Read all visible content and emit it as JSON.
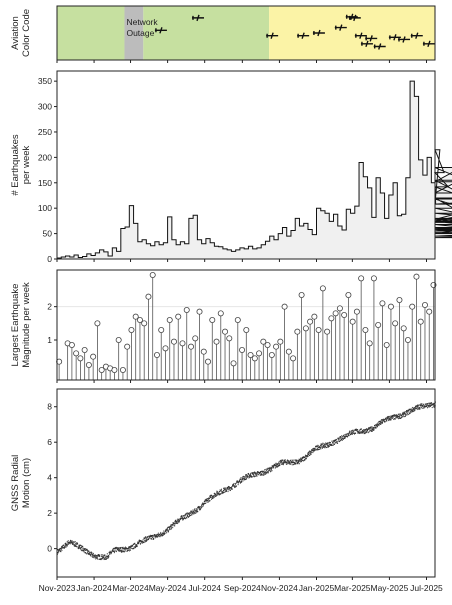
{
  "x_axis": {
    "start": "2023-11-01",
    "end": "2025-07-15",
    "ticks": [
      {
        "date": "2023-11-01",
        "label": "Nov-2023"
      },
      {
        "date": "2024-01-01",
        "label": "Jan-2024"
      },
      {
        "date": "2024-03-01",
        "label": "Mar-2024"
      },
      {
        "date": "2024-05-01",
        "label": "May-2024"
      },
      {
        "date": "2024-07-01",
        "label": "Jul-2024"
      },
      {
        "date": "2024-09-01",
        "label": "Sep-2024"
      },
      {
        "date": "2024-11-01",
        "label": "Nov-2024"
      },
      {
        "date": "2025-01-01",
        "label": "Jan-2025"
      },
      {
        "date": "2025-03-01",
        "label": "Mar-2025"
      },
      {
        "date": "2025-05-01",
        "label": "May-2025"
      },
      {
        "date": "2025-07-01",
        "label": "Jul-2025"
      }
    ]
  },
  "panel_aviation": {
    "ylabel_line1": "Aviation",
    "ylabel_line2": "Color Code",
    "segments": [
      {
        "start": "2023-11-01",
        "end": "2024-02-20",
        "color": "#c6e0a0",
        "label": ""
      },
      {
        "start": "2024-02-20",
        "end": "2024-03-22",
        "color": "#bcbcbc",
        "label": "Network Outage"
      },
      {
        "start": "2024-03-22",
        "end": "2024-10-15",
        "color": "#c6e0a0",
        "label": ""
      },
      {
        "start": "2024-10-15",
        "end": "2025-07-15",
        "color": "#fbf3a6",
        "label": ""
      }
    ],
    "outage_line1": "Network",
    "outage_line2": "Outage",
    "aircraft": [
      {
        "date": "2024-04-20",
        "level": 0.55
      },
      {
        "date": "2024-06-20",
        "level": 0.78
      },
      {
        "date": "2024-10-20",
        "level": 0.45
      },
      {
        "date": "2024-12-10",
        "level": 0.45
      },
      {
        "date": "2025-01-05",
        "level": 0.5
      },
      {
        "date": "2025-02-10",
        "level": 0.6
      },
      {
        "date": "2025-02-28",
        "level": 0.8
      },
      {
        "date": "2025-03-05",
        "level": 0.78
      },
      {
        "date": "2025-03-15",
        "level": 0.45
      },
      {
        "date": "2025-03-25",
        "level": 0.3
      },
      {
        "date": "2025-04-01",
        "level": 0.4
      },
      {
        "date": "2025-04-15",
        "level": 0.25
      },
      {
        "date": "2025-05-10",
        "level": 0.42
      },
      {
        "date": "2025-05-25",
        "level": 0.38
      },
      {
        "date": "2025-06-15",
        "level": 0.45
      },
      {
        "date": "2025-07-05",
        "level": 0.3
      }
    ]
  },
  "chart_data": [
    {
      "type": "bar",
      "style": "step",
      "ylabel_line1": "# Earthquakes",
      "ylabel_line2": "per week",
      "ylim": [
        0,
        370
      ],
      "yticks": [
        0,
        50,
        100,
        150,
        200,
        250,
        300,
        350
      ],
      "fill_color": "#f0f0f0",
      "week_start": "2023-11-01",
      "values": [
        2,
        4,
        6,
        4,
        8,
        3,
        5,
        10,
        7,
        12,
        18,
        14,
        6,
        22,
        15,
        60,
        63,
        105,
        70,
        34,
        38,
        30,
        26,
        34,
        28,
        32,
        83,
        38,
        28,
        34,
        30,
        80,
        86,
        38,
        30,
        40,
        32,
        25,
        24,
        20,
        18,
        15,
        18,
        22,
        20,
        25,
        20,
        22,
        28,
        35,
        45,
        38,
        50,
        62,
        45,
        56,
        80,
        65,
        70,
        58,
        48,
        100,
        95,
        90,
        74,
        88,
        65,
        57,
        98,
        90,
        104,
        190,
        162,
        140,
        82,
        160,
        130,
        80,
        126,
        150,
        85,
        88,
        160,
        350,
        320,
        195,
        165,
        200,
        150,
        110,
        215,
        170,
        142,
        130,
        152,
        180,
        155,
        120,
        78,
        100,
        80,
        62,
        58,
        50,
        68,
        55,
        72,
        90,
        75,
        108,
        118,
        60,
        52,
        45,
        42,
        45,
        55,
        74,
        50
      ]
    },
    {
      "type": "scatter",
      "style": "stem",
      "ylabel_line1": "Largest Earthquake",
      "ylabel_line2": "Magnitude per week",
      "ylim": [
        -0.2,
        3.1
      ],
      "yticks": [
        1,
        2
      ],
      "gridline": 2,
      "week_start": "2023-11-01",
      "values": [
        0.35,
        null,
        0.9,
        0.85,
        0.6,
        0.45,
        0.7,
        0.25,
        0.5,
        1.5,
        0.1,
        0.2,
        0.15,
        0.1,
        1.0,
        0.1,
        0.8,
        1.3,
        1.7,
        1.6,
        1.5,
        2.3,
        2.95,
        0.55,
        1.3,
        0.75,
        1.6,
        0.95,
        1.7,
        0.9,
        1.9,
        0.8,
        1.05,
        1.85,
        0.65,
        0.35,
        1.6,
        0.95,
        1.8,
        1.25,
        1.05,
        0.3,
        1.6,
        0.7,
        1.3,
        0.55,
        0.45,
        0.6,
        0.95,
        0.85,
        0.55,
        0.8,
        0.95,
        2.0,
        0.65,
        0.45,
        1.25,
        2.35,
        1.35,
        1.55,
        1.7,
        1.3,
        2.55,
        1.25,
        1.65,
        1.8,
        1.95,
        1.75,
        2.35,
        1.55,
        1.85,
        2.85,
        1.3,
        0.9,
        2.85,
        1.45,
        2.1,
        0.85,
        2.0,
        1.5,
        2.2,
        1.35,
        1.0,
        2.0,
        2.9,
        1.55,
        2.05,
        1.85,
        2.65,
        2.1,
        0.75,
        1.9,
        2.25,
        1.85,
        2.65,
        2.3,
        0.85,
        0.85,
        0.75,
        2.25,
        0.4,
        0.95,
        2.0,
        0.75,
        0.5,
        1.85,
        2.65,
        0.35,
        0.85,
        0.85,
        0.75,
        1.25,
        1.9,
        1.95,
        2.0
      ]
    },
    {
      "type": "line",
      "style": "dotted",
      "ylabel_line1": "GNSS Radial",
      "ylabel_line2": "Motion (cm)",
      "ylim": [
        -1.6,
        9.0
      ],
      "yticks": [
        0,
        2,
        4,
        6,
        8
      ],
      "anchors": [
        {
          "date": "2023-11-01",
          "value": -0.1
        },
        {
          "date": "2023-11-20",
          "value": 0.35
        },
        {
          "date": "2023-12-10",
          "value": 0.0
        },
        {
          "date": "2024-01-01",
          "value": -0.35
        },
        {
          "date": "2024-01-20",
          "value": -0.55
        },
        {
          "date": "2024-02-05",
          "value": -0.1
        },
        {
          "date": "2024-03-01",
          "value": 0.1
        },
        {
          "date": "2024-04-01",
          "value": 0.55
        },
        {
          "date": "2024-05-01",
          "value": 1.1
        },
        {
          "date": "2024-06-01",
          "value": 1.85
        },
        {
          "date": "2024-07-01",
          "value": 2.6
        },
        {
          "date": "2024-08-01",
          "value": 3.3
        },
        {
          "date": "2024-09-01",
          "value": 3.9
        },
        {
          "date": "2024-10-01",
          "value": 4.3
        },
        {
          "date": "2024-11-01",
          "value": 4.75
        },
        {
          "date": "2024-12-01",
          "value": 4.95
        },
        {
          "date": "2025-01-01",
          "value": 5.6
        },
        {
          "date": "2025-02-01",
          "value": 6.1
        },
        {
          "date": "2025-03-01",
          "value": 6.5
        },
        {
          "date": "2025-04-01",
          "value": 6.8
        },
        {
          "date": "2025-05-01",
          "value": 7.3
        },
        {
          "date": "2025-06-01",
          "value": 7.75
        },
        {
          "date": "2025-07-01",
          "value": 8.05
        },
        {
          "date": "2025-07-15",
          "value": 8.2
        }
      ]
    }
  ]
}
